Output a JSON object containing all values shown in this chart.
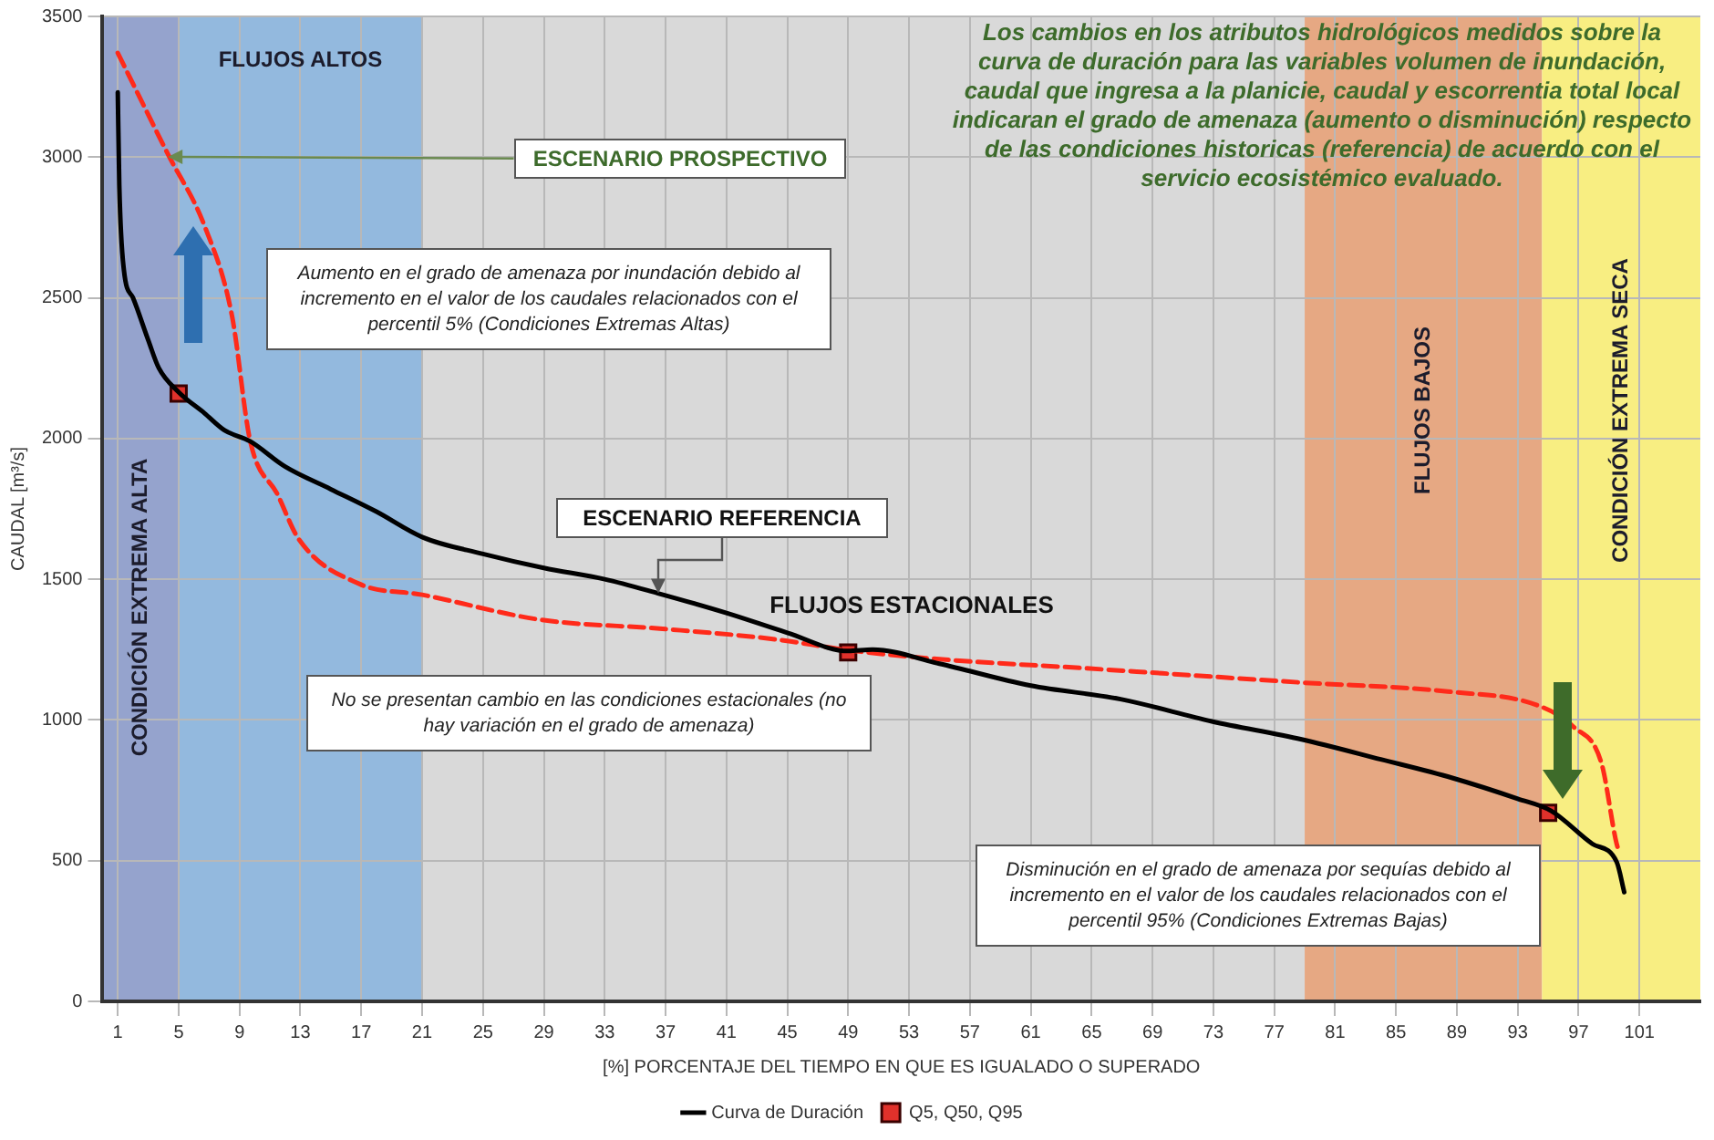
{
  "chart_data": {
    "type": "line",
    "xlabel": "[%] PORCENTAJE DEL TIEMPO EN QUE ES IGUALADO O SUPERADO",
    "ylabel": "CAUDAL [m³/s]",
    "xlim": [
      0,
      105
    ],
    "xticks": [
      1,
      5,
      9,
      13,
      17,
      21,
      25,
      29,
      33,
      37,
      41,
      45,
      49,
      53,
      57,
      61,
      65,
      69,
      73,
      77,
      81,
      85,
      89,
      93,
      97,
      101
    ],
    "ylim": [
      0,
      3500
    ],
    "yticks": [
      0,
      500,
      1000,
      1500,
      2000,
      2500,
      3000,
      3500
    ],
    "grid": true,
    "legend": "bottom",
    "bands": [
      {
        "axis": "x",
        "from": 0,
        "to": 5,
        "label": "CONDICIÓN EXTREMA ALTA",
        "color": "#95a3cd"
      },
      {
        "axis": "x",
        "from": 5,
        "to": 21,
        "label": "FLUJOS ALTOS",
        "color": "#93b9de"
      },
      {
        "axis": "x",
        "from": 21,
        "to": 79,
        "color": "#d9d9d9"
      },
      {
        "axis": "x",
        "from": 79,
        "to": 94.6,
        "label": "FLUJOS BAJOS",
        "color": "#e6a883"
      },
      {
        "axis": "x",
        "from": 94.6,
        "to": 105,
        "label": "CONDICIÓN EXTREMA SECA",
        "color": "#f8ee82"
      }
    ],
    "series": [
      {
        "name": "Curva de Duración",
        "color": "#000000",
        "marker": "none",
        "line_style": "solid",
        "x": [
          1,
          1.1,
          1.4,
          2,
          3,
          3.7,
          5,
          6.7,
          8,
          9.7,
          12,
          15,
          18,
          21,
          25,
          29,
          33,
          36.5,
          41,
          45,
          49,
          50.6,
          55,
          61,
          66.9,
          72.9,
          78.8,
          84,
          88.7,
          93,
          95.2,
          97.9,
          99.5,
          100
        ],
        "values": [
          3230,
          2900,
          2600,
          2500,
          2350,
          2250,
          2165,
          2090,
          2030,
          1990,
          1900,
          1820,
          1740,
          1650,
          1590,
          1540,
          1500,
          1450,
          1380,
          1310,
          1245,
          1250,
          1200,
          1122,
          1074,
          995,
          931,
          860,
          794,
          720,
          677,
          560,
          496,
          388
        ]
      },
      {
        "color": "#ff2a1a",
        "marker": "none",
        "line_style": "dashed",
        "x": [
          1,
          4.3,
          6.7,
          8.5,
          9.7,
          11.5,
          12.9,
          16.9,
          21,
          28.8,
          36.8,
          44.3,
          49,
          55,
          64.5,
          78.8,
          88.4,
          94.4,
          96.7,
          98.5,
          99.5,
          99.7
        ],
        "values": [
          3370,
          3010,
          2756,
          2438,
          1992,
          1801,
          1642,
          1483,
          1445,
          1356,
          1324,
          1286,
          1248,
          1216,
          1184,
          1133,
          1101,
          1050,
          974,
          847,
          560,
          528
        ]
      },
      {
        "name": "Q5, Q50, Q95",
        "type": "scatter",
        "color": "#e0312b",
        "marker": "square",
        "x": [
          5,
          49,
          95
        ],
        "values": [
          2160,
          1240,
          670
        ]
      }
    ],
    "annotations": [
      "Los cambios en los atributos hidrológicos medidos sobre la curva de duración para las variables volumen de inundación, caudal que ingresa a la planicie, caudal y escorrentia total local indicaran el grado de amenaza (aumento o disminución) respecto de las condiciones historicas (referencia) de acuerdo con el servicio ecosistémico evaluado.",
      {
        "text": "ESCENARIO PROSPECTIVO",
        "x": 4.3,
        "y": 3000
      },
      "Aumento en el grado de amenaza por inundación debido al incremento en el valor de los caudales relacionados con el percentil 5% (Condiciones Extremas Altas)",
      {
        "text": "ESCENARIO REFERENCIA",
        "x": 36.5,
        "y": 1450
      },
      "FLUJOS ESTACIONALES",
      "No se presentan cambio en las condiciones estacionales (no hay variación en el grado de amenaza)",
      "Disminución en el grado de amenaza por sequías debido al incremento en el valor de los caudales relacionados con el percentil 95% (Condiciones Extremas Bajas)"
    ]
  }
}
